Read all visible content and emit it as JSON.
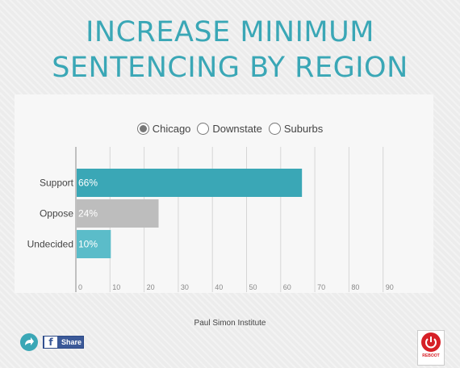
{
  "title_line1": "INCREASE MINIMUM",
  "title_line2": "SENTENCING BY REGION",
  "regions": [
    {
      "label": "Chicago",
      "selected": true
    },
    {
      "label": "Downstate",
      "selected": false
    },
    {
      "label": "Suburbs",
      "selected": false
    }
  ],
  "chart_data": {
    "type": "bar",
    "orientation": "horizontal",
    "title": "INCREASE MINIMUM SENTENCING BY REGION",
    "categories": [
      "Support",
      "Oppose",
      "Undecided"
    ],
    "values": [
      66,
      24,
      10
    ],
    "value_labels": [
      "66%",
      "24%",
      "10%"
    ],
    "colors": [
      "#3aa7b6",
      "#bdbdbd",
      "#5bbcc9"
    ],
    "xlim": [
      0,
      100
    ],
    "ticks": [
      0,
      10,
      20,
      30,
      40,
      50,
      60,
      70,
      80,
      90
    ],
    "grid": true,
    "legend": "none"
  },
  "source": "Paul Simon Institute",
  "share_label": "Share",
  "fb_glyph": "f",
  "logo_text": "REBOOT",
  "icons": {
    "share": "share-arrow-icon",
    "facebook": "facebook-icon",
    "logo": "reboot-logo-icon"
  }
}
